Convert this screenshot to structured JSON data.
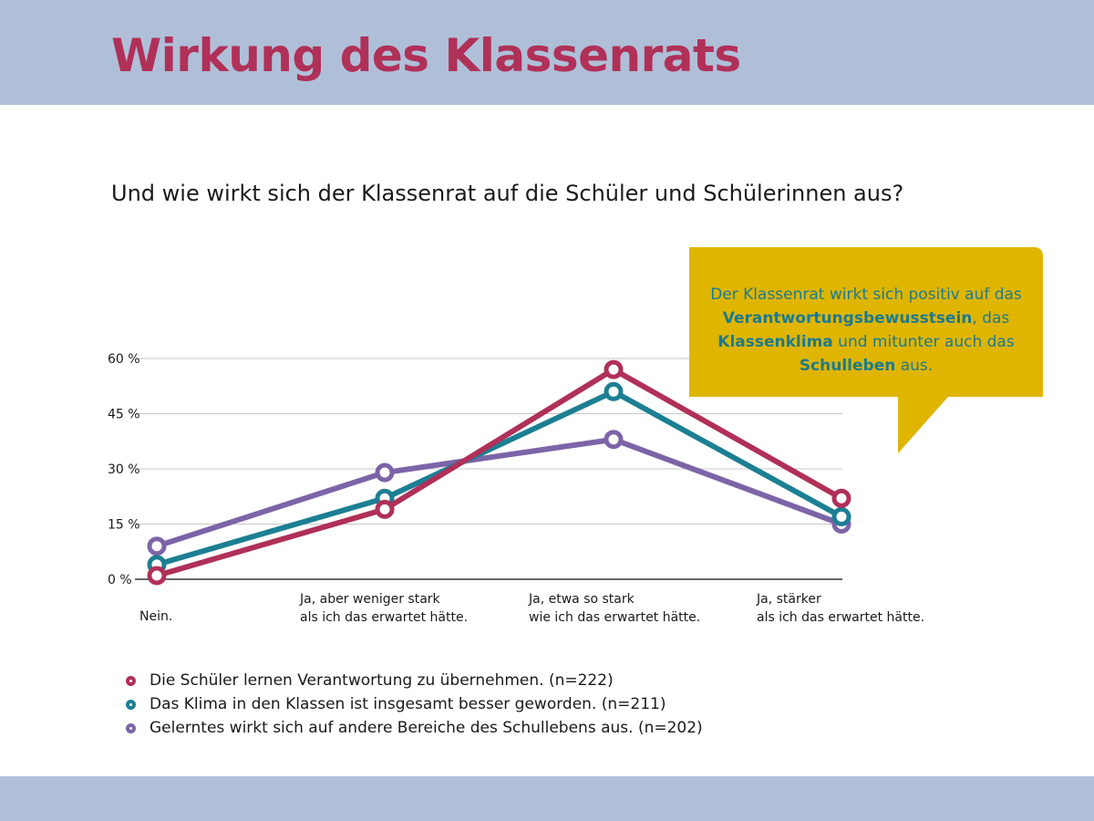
{
  "page": {
    "title": "Wirkung des Klassenrats",
    "question": "Und wie wirkt sich der Klassenrat auf die Schüler und Schülerinnen aus?"
  },
  "callout": {
    "line1": "Der Klassenrat wirkt sich positiv auf das",
    "bold1": "Verantwortungsbewusstsein",
    "after1": ", das",
    "bold2": "Klassenklima",
    "after2": " und mitunter auch das",
    "bold3": "Schulleben",
    "after3": " aus."
  },
  "colors": {
    "title": "#b03058",
    "band": "#b0bfd8",
    "callout_bg": "#dfb500",
    "callout_text": "#1c7a90",
    "series": [
      "#b03058",
      "#1c7f93",
      "#7c64a8"
    ]
  },
  "chart_data": {
    "type": "line",
    "title": "",
    "xlabel": "",
    "ylabel": "",
    "ylim": [
      0,
      60
    ],
    "yticks": [
      0,
      15,
      30,
      45,
      60
    ],
    "ytick_labels": [
      "0 %",
      "15 %",
      "30 %",
      "45 %",
      "60 %"
    ],
    "grid": true,
    "legend_position": "bottom",
    "categories": [
      [
        "Nein."
      ],
      [
        "Ja, aber weniger stark",
        "als ich das erwartet hätte."
      ],
      [
        "Ja, etwa so stark",
        "wie ich das erwartet hätte."
      ],
      [
        "Ja, stärker",
        "als ich das erwartet hätte."
      ]
    ],
    "series": [
      {
        "name": "Die Schüler lernen Verantwortung zu übernehmen. (n=222)",
        "values": [
          1,
          19,
          57,
          22
        ]
      },
      {
        "name": "Das Klima in den Klassen ist insgesamt besser geworden. (n=211)",
        "values": [
          4,
          22,
          51,
          17
        ]
      },
      {
        "name": "Gelerntes wirkt sich auf andere Bereiche des Schullebens aus. (n=202)",
        "values": [
          9,
          29,
          38,
          15
        ]
      }
    ]
  }
}
